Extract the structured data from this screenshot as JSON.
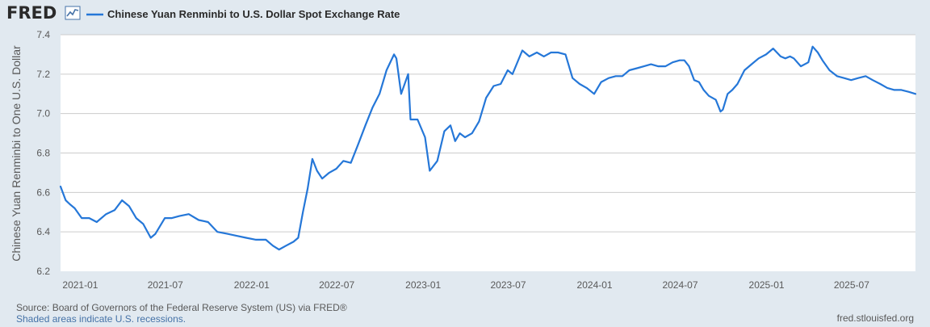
{
  "header": {
    "logo_text": "FRED",
    "logo_icon": "trend-line-icon",
    "legend_label": "Chinese Yuan Renminbi to U.S. Dollar Spot Exchange Rate"
  },
  "footer": {
    "source": "Source: Board of Governors of the Federal Reserve System (US) via FRED®",
    "recession_note": "Shaded areas indicate U.S. recessions.",
    "site": "fred.stlouisfed.org"
  },
  "colors": {
    "background": "#e1e9f0",
    "plot_bg": "#ffffff",
    "line": "#2577d8",
    "grid": "#cccccc",
    "text": "#595959"
  },
  "chart_data": {
    "type": "line",
    "title": "",
    "xlabel": "",
    "ylabel": "Chinese Yuan Renminbi to One U.S. Dollar",
    "ylim": [
      6.2,
      7.4
    ],
    "xlim": [
      "2020-11-20",
      "2025-11-14"
    ],
    "y_ticks": [
      "6.2",
      "6.4",
      "6.6",
      "6.8",
      "7.0",
      "7.2",
      "7.4"
    ],
    "x_ticks": [
      "2021-01",
      "2021-07",
      "2022-01",
      "2022-07",
      "2023-01",
      "2023-07",
      "2024-01",
      "2024-07",
      "2025-01",
      "2025-07"
    ],
    "grid": true,
    "legend": "top-left",
    "series": [
      {
        "name": "Chinese Yuan Renminbi to U.S. Dollar Spot Exchange Rate",
        "x": [
          "2020-11-20",
          "2020-12-01",
          "2020-12-10",
          "2020-12-20",
          "2021-01-04",
          "2021-01-20",
          "2021-02-05",
          "2021-02-25",
          "2021-03-15",
          "2021-03-31",
          "2021-04-15",
          "2021-04-30",
          "2021-05-15",
          "2021-05-31",
          "2021-06-10",
          "2021-06-30",
          "2021-07-15",
          "2021-07-31",
          "2021-08-20",
          "2021-09-10",
          "2021-09-30",
          "2021-10-20",
          "2021-11-10",
          "2021-11-30",
          "2021-12-20",
          "2022-01-10",
          "2022-01-31",
          "2022-02-15",
          "2022-02-28",
          "2022-03-15",
          "2022-03-31",
          "2022-04-10",
          "2022-04-20",
          "2022-04-30",
          "2022-05-10",
          "2022-05-20",
          "2022-05-31",
          "2022-06-15",
          "2022-06-30",
          "2022-07-15",
          "2022-07-31",
          "2022-08-15",
          "2022-08-31",
          "2022-09-15",
          "2022-09-30",
          "2022-10-15",
          "2022-10-31",
          "2022-11-05",
          "2022-11-15",
          "2022-11-30",
          "2022-12-05",
          "2022-12-20",
          "2023-01-05",
          "2023-01-15",
          "2023-01-31",
          "2023-02-15",
          "2023-02-28",
          "2023-03-10",
          "2023-03-20",
          "2023-03-31",
          "2023-04-15",
          "2023-04-30",
          "2023-05-15",
          "2023-05-31",
          "2023-06-15",
          "2023-06-30",
          "2023-07-10",
          "2023-07-31",
          "2023-08-15",
          "2023-08-31",
          "2023-09-15",
          "2023-09-30",
          "2023-10-15",
          "2023-10-31",
          "2023-11-15",
          "2023-11-30",
          "2023-12-15",
          "2023-12-31",
          "2024-01-15",
          "2024-01-31",
          "2024-02-15",
          "2024-02-29",
          "2024-03-15",
          "2024-03-31",
          "2024-04-15",
          "2024-04-30",
          "2024-05-15",
          "2024-05-31",
          "2024-06-15",
          "2024-06-30",
          "2024-07-10",
          "2024-07-20",
          "2024-07-31",
          "2024-08-10",
          "2024-08-20",
          "2024-08-31",
          "2024-09-15",
          "2024-09-25",
          "2024-09-30",
          "2024-10-10",
          "2024-10-20",
          "2024-10-31",
          "2024-11-15",
          "2024-11-30",
          "2024-12-15",
          "2024-12-31",
          "2025-01-15",
          "2025-01-31",
          "2025-02-10",
          "2025-02-20",
          "2025-02-28",
          "2025-03-15",
          "2025-03-31",
          "2025-04-09",
          "2025-04-20",
          "2025-04-30",
          "2025-05-15",
          "2025-05-31",
          "2025-06-15",
          "2025-06-30",
          "2025-07-15",
          "2025-07-31",
          "2025-08-15",
          "2025-08-31",
          "2025-09-15",
          "2025-09-30",
          "2025-10-15",
          "2025-10-31",
          "2025-11-14"
        ],
        "values": [
          6.63,
          6.56,
          6.54,
          6.52,
          6.47,
          6.47,
          6.45,
          6.49,
          6.51,
          6.56,
          6.53,
          6.47,
          6.44,
          6.37,
          6.39,
          6.47,
          6.47,
          6.48,
          6.49,
          6.46,
          6.45,
          6.4,
          6.39,
          6.38,
          6.37,
          6.36,
          6.36,
          6.33,
          6.31,
          6.33,
          6.35,
          6.37,
          6.5,
          6.62,
          6.77,
          6.71,
          6.67,
          6.7,
          6.72,
          6.76,
          6.75,
          6.84,
          6.94,
          7.03,
          7.1,
          7.22,
          7.3,
          7.28,
          7.1,
          7.2,
          6.97,
          6.97,
          6.88,
          6.71,
          6.76,
          6.91,
          6.94,
          6.86,
          6.9,
          6.88,
          6.9,
          6.96,
          7.08,
          7.14,
          7.15,
          7.22,
          7.2,
          7.32,
          7.29,
          7.31,
          7.29,
          7.31,
          7.31,
          7.3,
          7.18,
          7.15,
          7.13,
          7.1,
          7.16,
          7.18,
          7.19,
          7.19,
          7.22,
          7.23,
          7.24,
          7.25,
          7.24,
          7.24,
          7.26,
          7.27,
          7.27,
          7.24,
          7.17,
          7.16,
          7.12,
          7.09,
          7.07,
          7.01,
          7.02,
          7.1,
          7.12,
          7.15,
          7.22,
          7.25,
          7.28,
          7.3,
          7.33,
          7.29,
          7.28,
          7.29,
          7.28,
          7.24,
          7.26,
          7.34,
          7.31,
          7.27,
          7.22,
          7.19,
          7.18,
          7.17,
          7.18,
          7.19,
          7.17,
          7.15,
          7.13,
          7.12,
          7.12,
          7.11,
          7.1
        ]
      }
    ]
  }
}
